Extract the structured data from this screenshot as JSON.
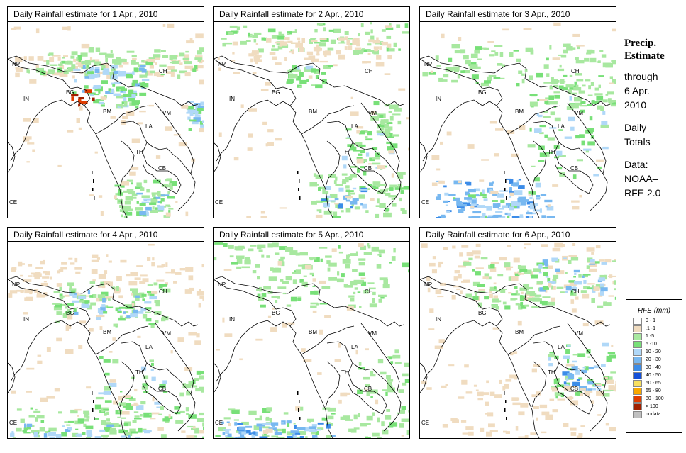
{
  "panels": [
    {
      "title": "Daily Rainfall estimate for  1 Apr., 2010",
      "day": 1
    },
    {
      "title": "Daily Rainfall estimate for  2 Apr., 2010",
      "day": 2
    },
    {
      "title": "Daily Rainfall estimate for  3 Apr., 2010",
      "day": 3
    },
    {
      "title": "Daily Rainfall estimate for  4 Apr., 2010",
      "day": 4
    },
    {
      "title": "Daily Rainfall estimate for  5 Apr., 2010",
      "day": 5
    },
    {
      "title": "Daily Rainfall estimate for  6 Apr., 2010",
      "day": 6
    }
  ],
  "map_labels": {
    "np": "NP",
    "ch": "CH",
    "in": "IN",
    "bg": "BG",
    "bm": "BM",
    "vm": "VM",
    "la": "LA",
    "th": "TH",
    "cb": "CB",
    "ce": "CE"
  },
  "side": {
    "title_line1": "Precip.",
    "title_line2": "Estimate",
    "line_through": "through",
    "line_date1": "6 Apr.",
    "line_date2": "2010",
    "line_daily1": "Daily",
    "line_daily2": "Totals",
    "line_data1": "Data:",
    "line_data2": "NOAA–",
    "line_data3": "RFE 2.0"
  },
  "legend": {
    "title": "RFE (mm)",
    "items": [
      {
        "label": "0 - 1",
        "color": "#fefefe"
      },
      {
        "label": ".1 -1",
        "color": "#f0dcc0"
      },
      {
        "label": "1 -5",
        "color": "#a8e8a0"
      },
      {
        "label": "5 -10",
        "color": "#78e078"
      },
      {
        "label": "10 - 20",
        "color": "#b0d8f8"
      },
      {
        "label": "20 - 30",
        "color": "#78b8f0"
      },
      {
        "label": "30 - 40",
        "color": "#3c8ce8"
      },
      {
        "label": "40 - 50",
        "color": "#1450d8"
      },
      {
        "label": "50 - 65",
        "color": "#f8e060"
      },
      {
        "label": "65 - 80",
        "color": "#f8a800"
      },
      {
        "label": "80 - 100",
        "color": "#e03c00"
      },
      {
        "label": "> 100",
        "color": "#a02000"
      },
      {
        "label": "nodata",
        "color": "#c0c0c0"
      }
    ]
  }
}
